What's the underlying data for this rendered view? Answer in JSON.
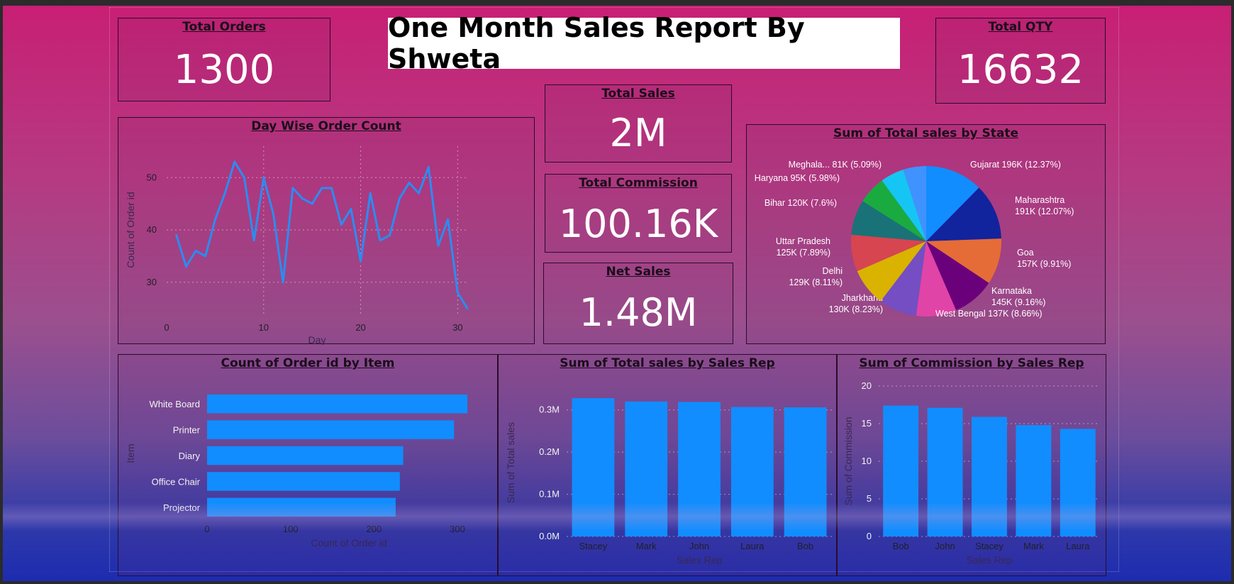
{
  "report_title": "One Month Sales Report By Shweta",
  "kpis": {
    "total_orders": {
      "label": "Total Orders",
      "value": "1300"
    },
    "total_qty": {
      "label": "Total QTY",
      "value": "16632"
    },
    "total_sales": {
      "label": "Total Sales",
      "value": "2M"
    },
    "total_commission": {
      "label": "Total Commission",
      "value": "100.16K"
    },
    "net_sales": {
      "label": "Net Sales",
      "value": "1.48M"
    }
  },
  "colors": {
    "bar": "#118dff",
    "line": "#2b8cf2",
    "pie": [
      "#118dff",
      "#12239e",
      "#e66c37",
      "#6b007b",
      "#e044a7",
      "#744ec2",
      "#d9b300",
      "#d64550",
      "#197278",
      "#1aab40",
      "#15c6f4",
      "#4092ff"
    ]
  },
  "chart_data": [
    {
      "type": "line",
      "title": "Day Wise Order Count",
      "xlabel": "Day",
      "ylabel": "Count of Order id",
      "x": [
        1,
        2,
        3,
        4,
        5,
        6,
        7,
        8,
        9,
        10,
        11,
        12,
        13,
        14,
        15,
        16,
        17,
        18,
        19,
        20,
        21,
        22,
        23,
        24,
        25,
        26,
        27,
        28,
        29,
        30,
        31
      ],
      "y": [
        39,
        33,
        36,
        35,
        42,
        47,
        53,
        50,
        38,
        50,
        43,
        30,
        48,
        46,
        45,
        48,
        48,
        41,
        44,
        34,
        47,
        38,
        39,
        46,
        49,
        47,
        52,
        37,
        42,
        28,
        25
      ],
      "xticks": [
        "0",
        "10",
        "20",
        "30"
      ],
      "yticks": [
        "30",
        "40",
        "50"
      ],
      "xlim": [
        0,
        31
      ],
      "ylim": [
        24,
        56
      ],
      "grid": true
    },
    {
      "type": "pie",
      "title": "Sum of Total sales by State",
      "slices": [
        {
          "label": "Gujarat 196K (12.37%)",
          "value": 196
        },
        {
          "label": "Maharashtra 191K (12.07%)",
          "value": 191
        },
        {
          "label": "Goa 157K (9.91%)",
          "value": 157
        },
        {
          "label": "Karnataka 145K (9.16%)",
          "value": 145
        },
        {
          "label": "West Bengal 137K (8.66%)",
          "value": 137
        },
        {
          "label": "Jharkhand 130K (8.23%)",
          "value": 130
        },
        {
          "label": "Delhi 129K (8.11%)",
          "value": 129
        },
        {
          "label": "Uttar Pradesh 125K (7.89%)",
          "value": 125
        },
        {
          "label": "Bihar 120K (7.6%)",
          "value": 120
        },
        {
          "label": "Haryana 95K (5.98%)",
          "value": 95
        },
        {
          "label": "Meghala... 81K (5.09%)",
          "value": 81
        },
        {
          "label": "",
          "value": 78
        }
      ]
    },
    {
      "type": "bar",
      "orientation": "horizontal",
      "title": "Count of Order id by Item",
      "xlabel": "Count of Order id",
      "ylabel": "Item",
      "categories": [
        "White Board",
        "Printer",
        "Diary",
        "Office Chair",
        "Projector"
      ],
      "values": [
        312,
        296,
        235,
        231,
        226
      ],
      "xticks": [
        "0",
        "100",
        "200",
        "300"
      ],
      "xlim": [
        0,
        340
      ]
    },
    {
      "type": "bar",
      "title": "Sum of Total sales by Sales Rep",
      "xlabel": "Sales Rep",
      "ylabel": "Sum of Total sales",
      "categories": [
        "Stacey",
        "Mark",
        "John",
        "Laura",
        "Bob"
      ],
      "values": [
        0.328,
        0.32,
        0.319,
        0.307,
        0.306
      ],
      "yticks": [
        "0.0M",
        "0.1M",
        "0.2M",
        "0.3M"
      ],
      "ylim": [
        0,
        0.35
      ]
    },
    {
      "type": "bar",
      "title": "Sum of Commission by Sales Rep",
      "xlabel": "Sales Rep",
      "ylabel": "Sum of Commission",
      "categories": [
        "Bob",
        "John",
        "Stacey",
        "Mark",
        "Laura"
      ],
      "values": [
        17.4,
        17.1,
        15.9,
        14.8,
        14.3
      ],
      "yticks": [
        "0",
        "5",
        "10",
        "15",
        "20"
      ],
      "ylim": [
        0,
        20
      ]
    }
  ]
}
